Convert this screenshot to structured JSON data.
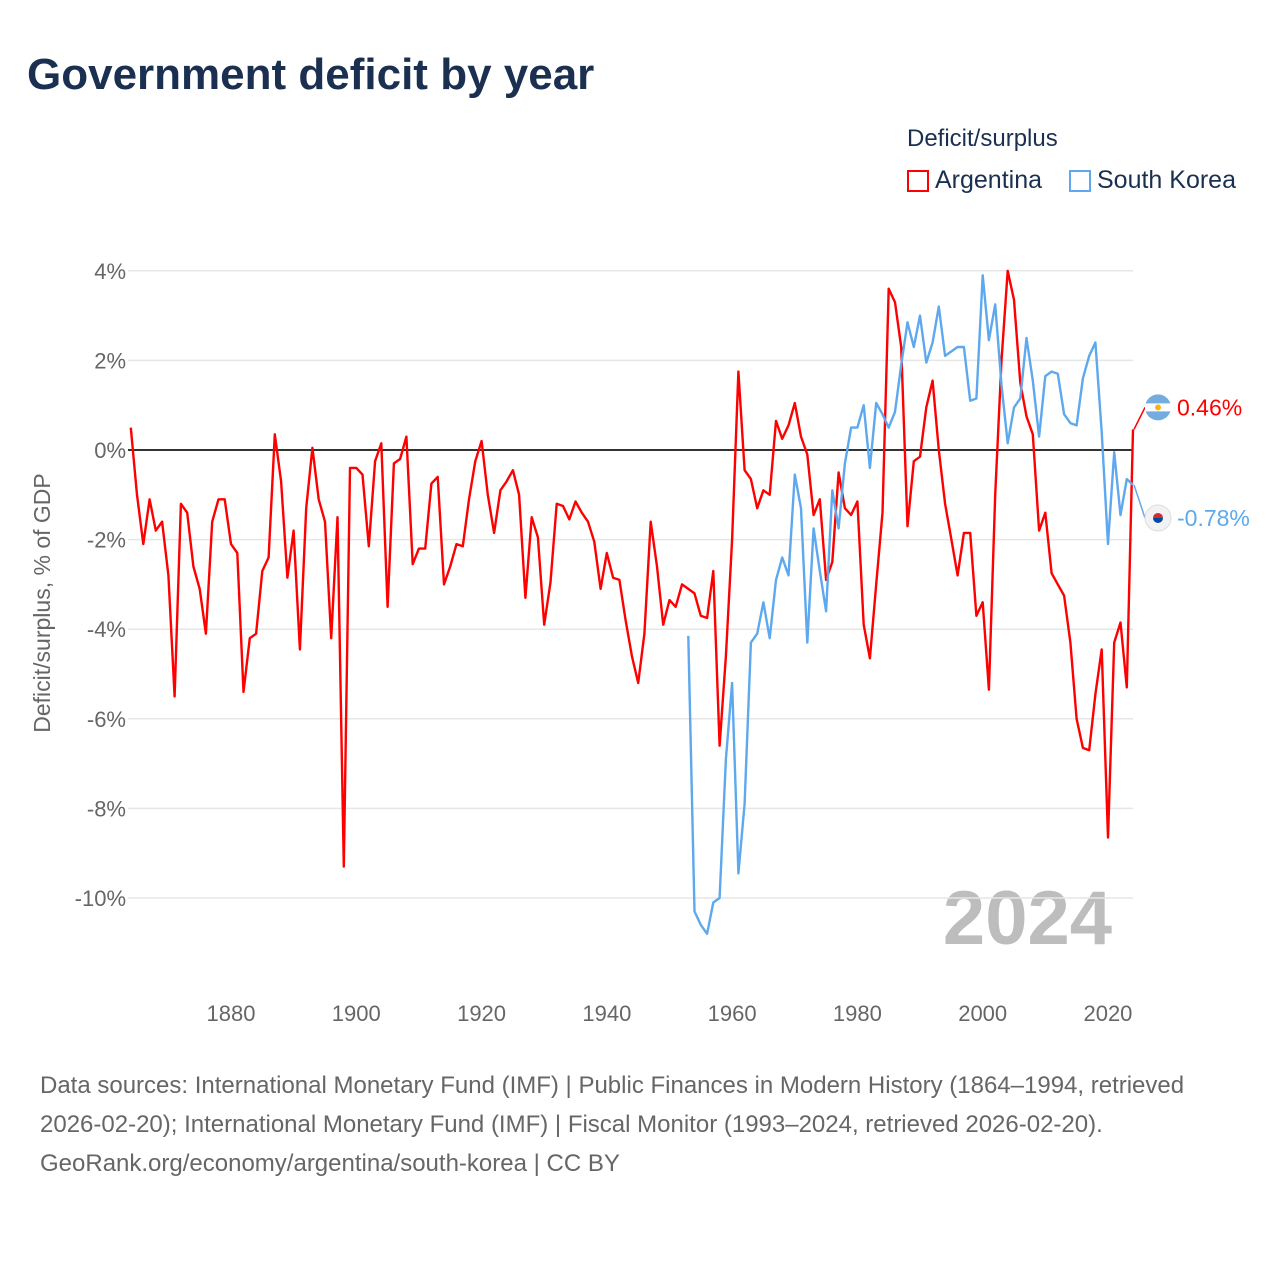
{
  "title": "Government deficit by year",
  "legend": {
    "title": "Deficit/surplus",
    "items": [
      {
        "label": "Argentina",
        "color": "#ff0000"
      },
      {
        "label": "South Korea",
        "color": "#5ea8ee"
      }
    ]
  },
  "footer": {
    "sources": "Data sources: International Monetary Fund (IMF) | Public Finances in Modern History (1864–1994, retrieved 2026-02-20); International Monetary Fund (IMF) | Fiscal Monitor (1993–2024, retrieved 2026-02-20).",
    "credit": "GeoRank.org/economy/argentina/south-korea | CC BY"
  },
  "chart_data": {
    "type": "line",
    "title": "Government deficit by year",
    "ylabel": "Deficit/surplus, % of GDP",
    "xlabel": "",
    "ylim": [
      -12,
      4.4
    ],
    "xlim": [
      1864,
      2024
    ],
    "yticks": [
      4,
      2,
      0,
      -2,
      -4,
      -6,
      -8,
      -10
    ],
    "ytick_labels": [
      "4%",
      "2%",
      "0%",
      "-2%",
      "-4%",
      "-6%",
      "-8%",
      "-10%"
    ],
    "xticks": [
      1880,
      1900,
      1920,
      1940,
      1960,
      1980,
      2000,
      2020
    ],
    "xtick_labels": [
      "1880",
      "1900",
      "1920",
      "1940",
      "1960",
      "1980",
      "2000",
      "2020"
    ],
    "current_year_label": "2024",
    "grid": true,
    "legend_position": "top-right",
    "series": [
      {
        "name": "Argentina",
        "color": "#ff0000",
        "start_year": 1864,
        "end_label": "0.46%",
        "values": [
          0.5,
          -1.0,
          -2.1,
          -1.1,
          -1.8,
          -1.6,
          -2.8,
          -5.5,
          -1.2,
          -1.4,
          -2.6,
          -3.1,
          -4.1,
          -1.6,
          -1.1,
          -1.1,
          -2.1,
          -2.3,
          -5.4,
          -4.2,
          -4.1,
          -2.7,
          -2.4,
          0.35,
          -0.7,
          -2.85,
          -1.8,
          -4.45,
          -1.3,
          0.05,
          -1.1,
          -1.6,
          -4.2,
          -1.5,
          -9.3,
          -0.4,
          -0.4,
          -0.55,
          -2.15,
          -0.25,
          0.15,
          -3.5,
          -0.3,
          -0.2,
          0.3,
          -2.55,
          -2.2,
          -2.2,
          -0.75,
          -0.6,
          -3.0,
          -2.6,
          -2.1,
          -2.15,
          -1.1,
          -0.25,
          0.2,
          -1.0,
          -1.85,
          -0.9,
          -0.7,
          -0.45,
          -1.0,
          -3.3,
          -1.5,
          -1.95,
          -3.9,
          -2.95,
          -1.2,
          -1.25,
          -1.55,
          -1.15,
          -1.4,
          -1.6,
          -2.05,
          -3.1,
          -2.3,
          -2.85,
          -2.9,
          -3.8,
          -4.6,
          -5.2,
          -4.1,
          -1.6,
          -2.6,
          -3.9,
          -3.35,
          -3.5,
          -3.0,
          -3.1,
          -3.2,
          -3.7,
          -3.75,
          -2.7,
          -6.6,
          -4.6,
          -2.0,
          1.75,
          -0.45,
          -0.65,
          -1.3,
          -0.9,
          -1.0,
          0.65,
          0.25,
          0.55,
          1.05,
          0.3,
          -0.1,
          -1.45,
          -1.1,
          -2.9,
          -2.5,
          -0.5,
          -1.3,
          -1.45,
          -1.15,
          -3.9,
          -4.65,
          -3.0,
          -1.4,
          3.6,
          3.3,
          2.3,
          -1.7,
          -0.25,
          -0.15,
          0.95,
          1.55,
          0.0,
          -1.2,
          -2.0,
          -2.8,
          -1.85,
          -1.85,
          -3.7,
          -3.4,
          -5.35,
          -1.0,
          2.0,
          4.0,
          3.35,
          1.5,
          0.75,
          0.35,
          -1.8,
          -1.4,
          -2.75,
          -3.0,
          -3.25,
          -4.3,
          -6.0,
          -6.65,
          -6.7,
          -5.45,
          -4.45,
          -8.65,
          -4.3,
          -3.85,
          -5.3,
          0.46
        ]
      },
      {
        "name": "South Korea",
        "color": "#5ea8ee",
        "start_year": 1953,
        "end_label": "-0.78%",
        "values": [
          -4.15,
          -10.3,
          -10.6,
          -10.8,
          -10.1,
          -10.0,
          -6.9,
          -5.2,
          -9.45,
          -7.9,
          -4.3,
          -4.1,
          -3.4,
          -4.2,
          -2.9,
          -2.4,
          -2.8,
          -0.55,
          -1.3,
          -4.3,
          -1.75,
          -2.7,
          -3.6,
          -0.9,
          -1.75,
          -0.3,
          0.5,
          0.5,
          1.0,
          -0.4,
          1.05,
          0.8,
          0.5,
          0.85,
          1.9,
          2.85,
          2.3,
          3.0,
          1.95,
          2.4,
          3.2,
          2.1,
          2.2,
          2.3,
          2.3,
          1.1,
          1.15,
          3.9,
          2.45,
          3.25,
          1.45,
          0.15,
          0.95,
          1.15,
          2.5,
          1.55,
          0.3,
          1.65,
          1.75,
          1.7,
          0.8,
          0.6,
          0.55,
          1.6,
          2.1,
          2.4,
          0.4,
          -2.1,
          -0.05,
          -1.45,
          -0.65,
          -0.78
        ]
      }
    ]
  }
}
